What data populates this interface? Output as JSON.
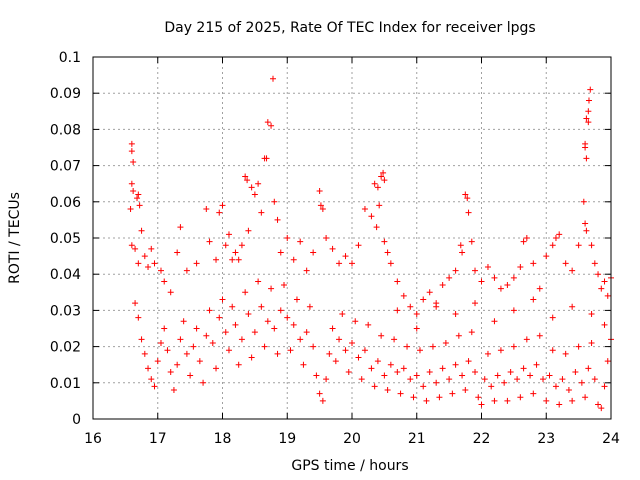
{
  "chart_data": {
    "type": "scatter",
    "title": "Day 215 of 2025, Rate Of TEC Index for receiver lpgs",
    "xlabel": "GPS time / hours",
    "ylabel": "ROTI / TECUs",
    "xlim": [
      16,
      24
    ],
    "ylim": [
      0,
      0.1
    ],
    "x_ticks": [
      "16",
      "17",
      "18",
      "19",
      "20",
      "21",
      "22",
      "23",
      "24"
    ],
    "y_ticks": [
      "0",
      "0.01",
      "0.02",
      "0.03",
      "0.04",
      "0.05",
      "0.06",
      "0.07",
      "0.08",
      "0.09",
      "0.1"
    ],
    "grid": true,
    "marker": "+",
    "color": "#ff0000",
    "series": [
      {
        "name": "ROTI",
        "points": [
          [
            16.6,
            0.076
          ],
          [
            16.6,
            0.074
          ],
          [
            16.62,
            0.071
          ],
          [
            16.6,
            0.065
          ],
          [
            16.62,
            0.063
          ],
          [
            16.58,
            0.058
          ],
          [
            16.7,
            0.062
          ],
          [
            16.72,
            0.059
          ],
          [
            16.68,
            0.061
          ],
          [
            16.6,
            0.048
          ],
          [
            16.65,
            0.047
          ],
          [
            16.7,
            0.043
          ],
          [
            16.75,
            0.052
          ],
          [
            16.8,
            0.045
          ],
          [
            16.85,
            0.042
          ],
          [
            16.9,
            0.047
          ],
          [
            16.95,
            0.043
          ],
          [
            17.05,
            0.041
          ],
          [
            17.1,
            0.038
          ],
          [
            17.2,
            0.035
          ],
          [
            17.35,
            0.053
          ],
          [
            17.3,
            0.046
          ],
          [
            17.45,
            0.041
          ],
          [
            17.6,
            0.043
          ],
          [
            17.75,
            0.058
          ],
          [
            17.8,
            0.049
          ],
          [
            17.9,
            0.044
          ],
          [
            17.95,
            0.057
          ],
          [
            18.0,
            0.059
          ],
          [
            18.05,
            0.048
          ],
          [
            18.1,
            0.051
          ],
          [
            18.15,
            0.044
          ],
          [
            18.2,
            0.046
          ],
          [
            18.35,
            0.067
          ],
          [
            18.38,
            0.066
          ],
          [
            18.45,
            0.064
          ],
          [
            18.5,
            0.062
          ],
          [
            18.55,
            0.065
          ],
          [
            18.6,
            0.057
          ],
          [
            18.65,
            0.072
          ],
          [
            18.68,
            0.072
          ],
          [
            18.7,
            0.082
          ],
          [
            18.75,
            0.081
          ],
          [
            18.78,
            0.094
          ],
          [
            18.8,
            0.06
          ],
          [
            18.85,
            0.055
          ],
          [
            18.4,
            0.052
          ],
          [
            18.3,
            0.048
          ],
          [
            18.25,
            0.044
          ],
          [
            18.9,
            0.046
          ],
          [
            19.0,
            0.05
          ],
          [
            19.1,
            0.044
          ],
          [
            19.2,
            0.049
          ],
          [
            19.3,
            0.041
          ],
          [
            19.4,
            0.046
          ],
          [
            19.5,
            0.063
          ],
          [
            19.52,
            0.059
          ],
          [
            19.55,
            0.058
          ],
          [
            19.6,
            0.05
          ],
          [
            19.7,
            0.047
          ],
          [
            19.8,
            0.043
          ],
          [
            19.9,
            0.045
          ],
          [
            20.0,
            0.043
          ],
          [
            20.1,
            0.048
          ],
          [
            20.2,
            0.058
          ],
          [
            20.3,
            0.056
          ],
          [
            20.35,
            0.065
          ],
          [
            20.4,
            0.064
          ],
          [
            20.45,
            0.067
          ],
          [
            20.48,
            0.068
          ],
          [
            20.5,
            0.066
          ],
          [
            20.42,
            0.059
          ],
          [
            20.38,
            0.053
          ],
          [
            20.5,
            0.049
          ],
          [
            20.55,
            0.046
          ],
          [
            20.6,
            0.043
          ],
          [
            20.7,
            0.038
          ],
          [
            20.8,
            0.034
          ],
          [
            20.9,
            0.031
          ],
          [
            21.0,
            0.029
          ],
          [
            21.1,
            0.033
          ],
          [
            21.2,
            0.035
          ],
          [
            21.3,
            0.032
          ],
          [
            21.4,
            0.037
          ],
          [
            21.5,
            0.039
          ],
          [
            21.6,
            0.041
          ],
          [
            21.68,
            0.048
          ],
          [
            21.7,
            0.046
          ],
          [
            21.75,
            0.062
          ],
          [
            21.78,
            0.061
          ],
          [
            21.8,
            0.057
          ],
          [
            21.85,
            0.049
          ],
          [
            21.9,
            0.041
          ],
          [
            22.0,
            0.038
          ],
          [
            22.1,
            0.042
          ],
          [
            22.2,
            0.039
          ],
          [
            22.3,
            0.036
          ],
          [
            22.4,
            0.037
          ],
          [
            22.5,
            0.039
          ],
          [
            22.6,
            0.042
          ],
          [
            22.65,
            0.049
          ],
          [
            22.7,
            0.05
          ],
          [
            22.8,
            0.043
          ],
          [
            22.9,
            0.036
          ],
          [
            23.0,
            0.045
          ],
          [
            23.1,
            0.048
          ],
          [
            23.15,
            0.05
          ],
          [
            23.2,
            0.051
          ],
          [
            23.3,
            0.043
          ],
          [
            23.4,
            0.041
          ],
          [
            23.5,
            0.048
          ],
          [
            23.58,
            0.06
          ],
          [
            23.6,
            0.075
          ],
          [
            23.6,
            0.076
          ],
          [
            23.62,
            0.072
          ],
          [
            23.62,
            0.083
          ],
          [
            23.65,
            0.085
          ],
          [
            23.66,
            0.088
          ],
          [
            23.68,
            0.091
          ],
          [
            23.65,
            0.082
          ],
          [
            23.6,
            0.054
          ],
          [
            23.62,
            0.052
          ],
          [
            23.7,
            0.048
          ],
          [
            23.75,
            0.043
          ],
          [
            23.8,
            0.04
          ],
          [
            23.85,
            0.036
          ],
          [
            23.9,
            0.038
          ],
          [
            23.95,
            0.034
          ],
          [
            24.0,
            0.039
          ],
          [
            16.65,
            0.032
          ],
          [
            16.7,
            0.028
          ],
          [
            16.75,
            0.022
          ],
          [
            16.8,
            0.018
          ],
          [
            16.85,
            0.014
          ],
          [
            16.9,
            0.011
          ],
          [
            16.95,
            0.009
          ],
          [
            17.0,
            0.016
          ],
          [
            17.05,
            0.021
          ],
          [
            17.1,
            0.025
          ],
          [
            17.15,
            0.019
          ],
          [
            17.2,
            0.013
          ],
          [
            17.25,
            0.008
          ],
          [
            17.3,
            0.015
          ],
          [
            17.35,
            0.022
          ],
          [
            17.4,
            0.027
          ],
          [
            17.45,
            0.018
          ],
          [
            17.5,
            0.012
          ],
          [
            17.55,
            0.02
          ],
          [
            17.6,
            0.025
          ],
          [
            17.65,
            0.016
          ],
          [
            17.7,
            0.01
          ],
          [
            17.75,
            0.023
          ],
          [
            17.8,
            0.03
          ],
          [
            17.85,
            0.021
          ],
          [
            17.9,
            0.014
          ],
          [
            17.95,
            0.028
          ],
          [
            18.0,
            0.033
          ],
          [
            18.05,
            0.024
          ],
          [
            18.1,
            0.019
          ],
          [
            18.15,
            0.031
          ],
          [
            18.2,
            0.026
          ],
          [
            18.25,
            0.015
          ],
          [
            18.3,
            0.022
          ],
          [
            18.35,
            0.035
          ],
          [
            18.4,
            0.029
          ],
          [
            18.45,
            0.017
          ],
          [
            18.5,
            0.024
          ],
          [
            18.55,
            0.038
          ],
          [
            18.6,
            0.031
          ],
          [
            18.65,
            0.02
          ],
          [
            18.7,
            0.027
          ],
          [
            18.75,
            0.036
          ],
          [
            18.8,
            0.025
          ],
          [
            18.85,
            0.018
          ],
          [
            18.9,
            0.03
          ],
          [
            18.95,
            0.037
          ],
          [
            19.0,
            0.028
          ],
          [
            19.05,
            0.019
          ],
          [
            19.1,
            0.026
          ],
          [
            19.15,
            0.033
          ],
          [
            19.2,
            0.022
          ],
          [
            19.25,
            0.015
          ],
          [
            19.3,
            0.024
          ],
          [
            19.35,
            0.031
          ],
          [
            19.4,
            0.02
          ],
          [
            19.45,
            0.012
          ],
          [
            19.5,
            0.007
          ],
          [
            19.55,
            0.005
          ],
          [
            19.6,
            0.011
          ],
          [
            19.65,
            0.018
          ],
          [
            19.7,
            0.025
          ],
          [
            19.75,
            0.016
          ],
          [
            19.8,
            0.022
          ],
          [
            19.85,
            0.029
          ],
          [
            19.9,
            0.019
          ],
          [
            19.95,
            0.013
          ],
          [
            20.0,
            0.021
          ],
          [
            20.05,
            0.027
          ],
          [
            20.1,
            0.017
          ],
          [
            20.15,
            0.011
          ],
          [
            20.2,
            0.019
          ],
          [
            20.25,
            0.026
          ],
          [
            20.3,
            0.014
          ],
          [
            20.35,
            0.009
          ],
          [
            20.4,
            0.016
          ],
          [
            20.45,
            0.023
          ],
          [
            20.5,
            0.012
          ],
          [
            20.55,
            0.008
          ],
          [
            20.6,
            0.015
          ],
          [
            20.65,
            0.022
          ],
          [
            20.7,
            0.013
          ],
          [
            20.75,
            0.007
          ],
          [
            20.8,
            0.014
          ],
          [
            20.85,
            0.02
          ],
          [
            20.9,
            0.011
          ],
          [
            20.95,
            0.006
          ],
          [
            21.0,
            0.012
          ],
          [
            21.05,
            0.019
          ],
          [
            21.1,
            0.009
          ],
          [
            21.15,
            0.005
          ],
          [
            21.2,
            0.013
          ],
          [
            21.25,
            0.02
          ],
          [
            21.3,
            0.01
          ],
          [
            21.35,
            0.006
          ],
          [
            21.4,
            0.014
          ],
          [
            21.45,
            0.021
          ],
          [
            21.5,
            0.011
          ],
          [
            21.55,
            0.007
          ],
          [
            21.6,
            0.015
          ],
          [
            21.65,
            0.023
          ],
          [
            21.7,
            0.012
          ],
          [
            21.75,
            0.008
          ],
          [
            21.8,
            0.016
          ],
          [
            21.85,
            0.024
          ],
          [
            21.9,
            0.013
          ],
          [
            21.95,
            0.006
          ],
          [
            22.0,
            0.004
          ],
          [
            22.05,
            0.011
          ],
          [
            22.1,
            0.018
          ],
          [
            22.15,
            0.009
          ],
          [
            22.2,
            0.005
          ],
          [
            22.25,
            0.012
          ],
          [
            22.3,
            0.019
          ],
          [
            22.35,
            0.01
          ],
          [
            22.4,
            0.005
          ],
          [
            22.45,
            0.013
          ],
          [
            22.5,
            0.02
          ],
          [
            22.55,
            0.011
          ],
          [
            22.6,
            0.006
          ],
          [
            22.65,
            0.014
          ],
          [
            22.7,
            0.022
          ],
          [
            22.75,
            0.012
          ],
          [
            22.8,
            0.007
          ],
          [
            22.85,
            0.015
          ],
          [
            22.9,
            0.023
          ],
          [
            22.95,
            0.011
          ],
          [
            23.0,
            0.005
          ],
          [
            23.05,
            0.012
          ],
          [
            23.1,
            0.019
          ],
          [
            23.15,
            0.009
          ],
          [
            23.2,
            0.004
          ],
          [
            23.25,
            0.011
          ],
          [
            23.3,
            0.018
          ],
          [
            23.35,
            0.008
          ],
          [
            23.4,
            0.005
          ],
          [
            23.45,
            0.013
          ],
          [
            23.5,
            0.02
          ],
          [
            23.55,
            0.01
          ],
          [
            23.6,
            0.006
          ],
          [
            23.65,
            0.014
          ],
          [
            23.7,
            0.021
          ],
          [
            23.75,
            0.011
          ],
          [
            23.8,
            0.004
          ],
          [
            23.85,
            0.003
          ],
          [
            23.9,
            0.009
          ],
          [
            23.95,
            0.016
          ],
          [
            24.0,
            0.022
          ],
          [
            23.9,
            0.026
          ],
          [
            23.7,
            0.029
          ],
          [
            23.4,
            0.031
          ],
          [
            23.1,
            0.028
          ],
          [
            22.8,
            0.033
          ],
          [
            22.5,
            0.03
          ],
          [
            22.2,
            0.027
          ],
          [
            21.9,
            0.032
          ],
          [
            21.6,
            0.029
          ],
          [
            21.3,
            0.031
          ],
          [
            21.0,
            0.025
          ],
          [
            20.7,
            0.03
          ]
        ]
      }
    ]
  }
}
